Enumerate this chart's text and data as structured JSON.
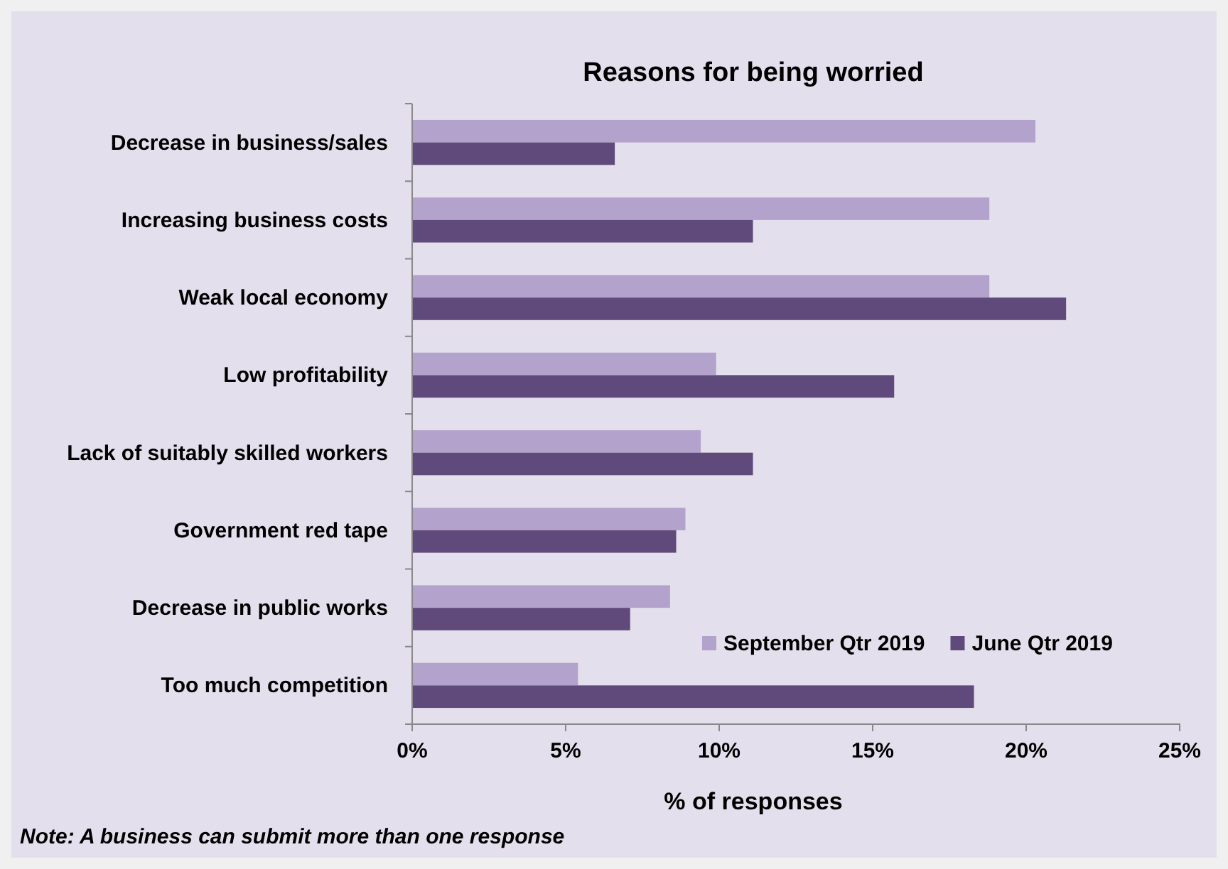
{
  "chart_data": {
    "type": "bar",
    "orientation": "horizontal",
    "title": "Reasons for being worried",
    "xlabel": "% of responses",
    "categories": [
      "Decrease in business/sales",
      "Increasing business costs",
      "Weak local economy",
      "Low profitability",
      "Lack of suitably skilled workers",
      "Government red tape",
      "Decrease in public works",
      "Too much competition"
    ],
    "series": [
      {
        "name": "September Qtr 2019",
        "color": "#b3a2cc",
        "values": [
          20.3,
          18.8,
          18.8,
          9.9,
          9.4,
          8.9,
          8.4,
          5.4
        ]
      },
      {
        "name": "June Qtr 2019",
        "color": "#604a7b",
        "values": [
          6.6,
          11.1,
          21.3,
          15.7,
          11.1,
          8.6,
          7.1,
          18.3
        ]
      }
    ],
    "xlim": [
      0,
      25
    ],
    "xticks": [
      {
        "value": 0,
        "label": "0%"
      },
      {
        "value": 5,
        "label": "5%"
      },
      {
        "value": 10,
        "label": "10%"
      },
      {
        "value": 15,
        "label": "15%"
      },
      {
        "value": 20,
        "label": "20%"
      },
      {
        "value": 25,
        "label": "25%"
      }
    ],
    "grid": false,
    "legend": "bottom right",
    "annotations": [
      "Note: A business can submit more than one response"
    ]
  }
}
